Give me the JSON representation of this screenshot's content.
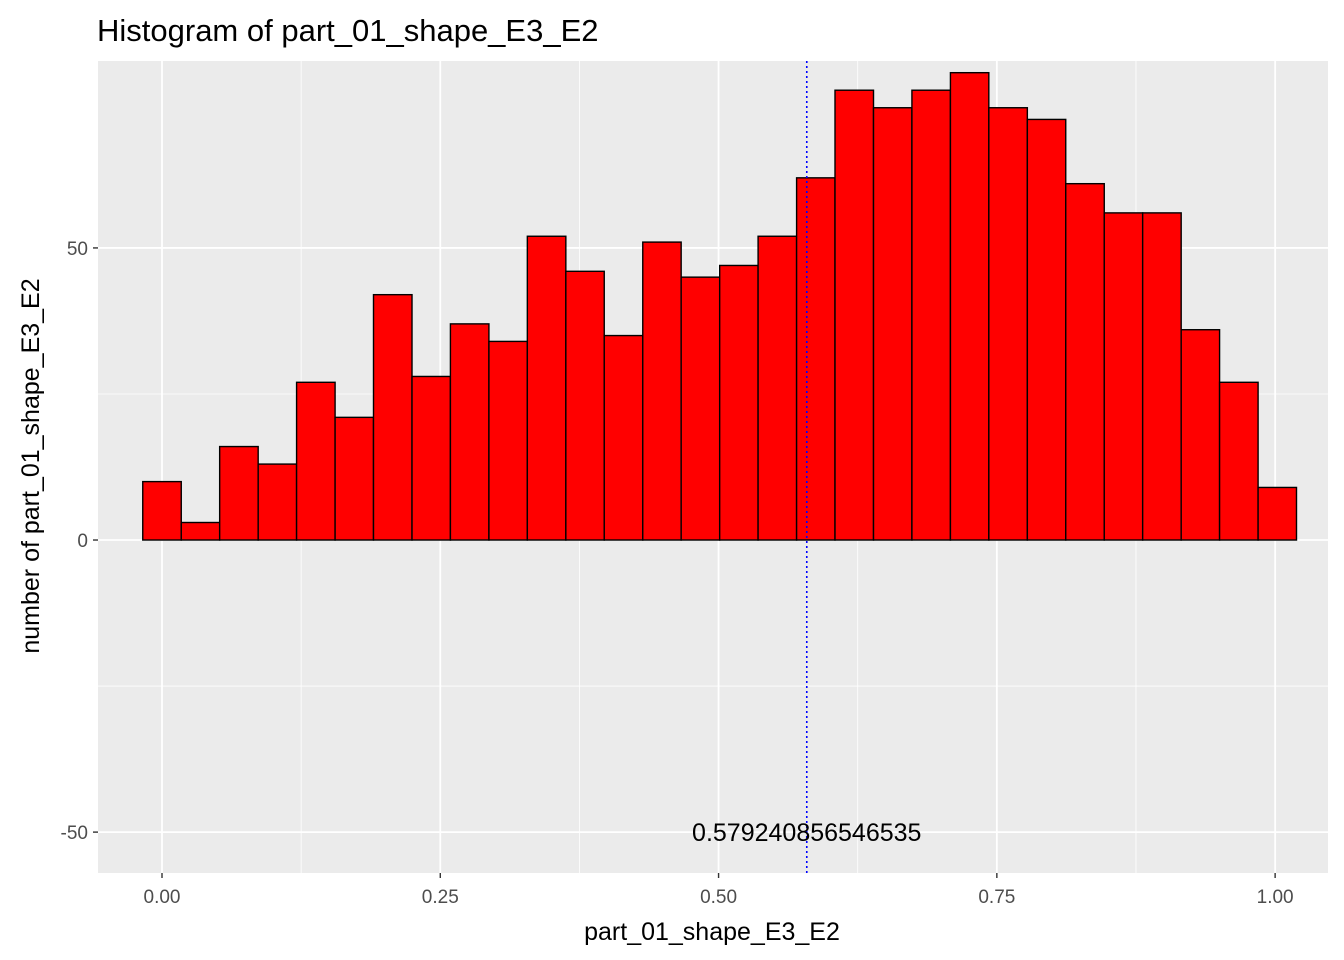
{
  "chart_data": {
    "type": "bar",
    "title": "Histogram of  part_01_shape_E3_E2",
    "xlabel": "part_01_shape_E3_E2",
    "ylabel": "number of  part_01_shape_E3_E2",
    "xlim": [
      -0.0575,
      1.0475
    ],
    "ylim": [
      -57,
      82
    ],
    "x_ticks": [
      0.0,
      0.25,
      0.5,
      0.75,
      1.0
    ],
    "x_tick_labels": [
      "0.00",
      "0.25",
      "0.50",
      "0.75",
      "1.00"
    ],
    "y_ticks": [
      -50,
      0,
      50
    ],
    "y_tick_labels": [
      "-50",
      "0",
      "50"
    ],
    "bin_edges": [
      -0.0173,
      0.0173,
      0.0518,
      0.0864,
      0.1209,
      0.1555,
      0.19,
      0.2246,
      0.2591,
      0.2937,
      0.3282,
      0.3628,
      0.3973,
      0.4319,
      0.4664,
      0.501,
      0.5355,
      0.5701,
      0.6046,
      0.6392,
      0.6737,
      0.7083,
      0.7428,
      0.7774,
      0.8119,
      0.8465,
      0.881,
      0.9156,
      0.9501,
      0.9847,
      1.0192
    ],
    "counts": [
      10,
      3,
      16,
      13,
      27,
      21,
      42,
      28,
      37,
      34,
      52,
      46,
      35,
      51,
      45,
      47,
      52,
      62,
      77,
      74,
      77,
      80,
      74,
      72,
      61,
      56,
      56,
      36,
      27,
      9
    ],
    "bar_fill": "#ff0000",
    "bar_stroke": "#000000",
    "vline": {
      "x": 0.579240856546535,
      "color": "#0000ff",
      "style": "dotted"
    },
    "annotation": {
      "text": "0.579240856546535",
      "x": 0.579240856546535,
      "y": -50
    },
    "grid": true,
    "panel_background": "#ebebeb",
    "grid_color": "#ffffff"
  }
}
